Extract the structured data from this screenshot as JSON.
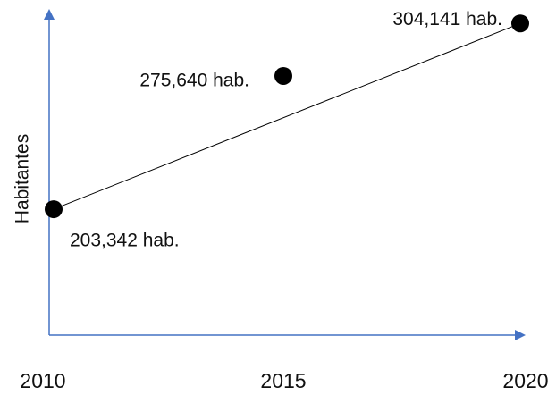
{
  "chart_data": {
    "type": "line",
    "y_label": "Habitantes",
    "categories": [
      "2010",
      "2015",
      "2020"
    ],
    "values": [
      203342,
      275640,
      304141
    ],
    "value_labels": [
      "203,342 hab.",
      "275,640 hab.",
      "304,141 hab."
    ],
    "color": "#000000",
    "axis_color": "#4472c4",
    "ylim": [
      135000,
      312000
    ]
  }
}
